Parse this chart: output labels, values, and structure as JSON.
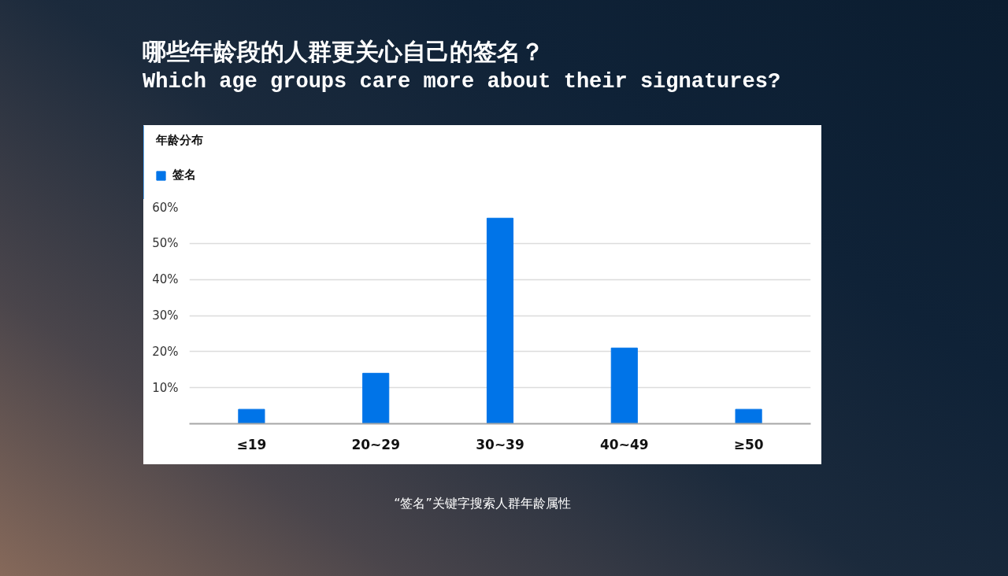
{
  "chart_data": {
    "type": "bar",
    "title": "哪些年龄段的人群更关心自己的签名？",
    "subtitle": "Which age groups care more about their signatures?",
    "annotations": [
      "年龄分布",
      "“签名”关键字搜索人群年龄属性"
    ],
    "categories": [
      "≤19",
      "20~29",
      "30~39",
      "40~49",
      "≥50"
    ],
    "series": [
      {
        "name": "签名",
        "color": "#0074e8",
        "values": [
          4,
          14,
          57,
          21,
          4
        ]
      }
    ],
    "ylim": [
      0,
      60
    ],
    "yticks": [
      {
        "value": 10,
        "label": "10%"
      },
      {
        "value": 20,
        "label": "20%"
      },
      {
        "value": 30,
        "label": "30%"
      },
      {
        "value": 40,
        "label": "40%"
      },
      {
        "value": 50,
        "label": "50%"
      },
      {
        "value": 60,
        "label": "60%"
      }
    ],
    "grid": "y",
    "legend": "top left"
  }
}
